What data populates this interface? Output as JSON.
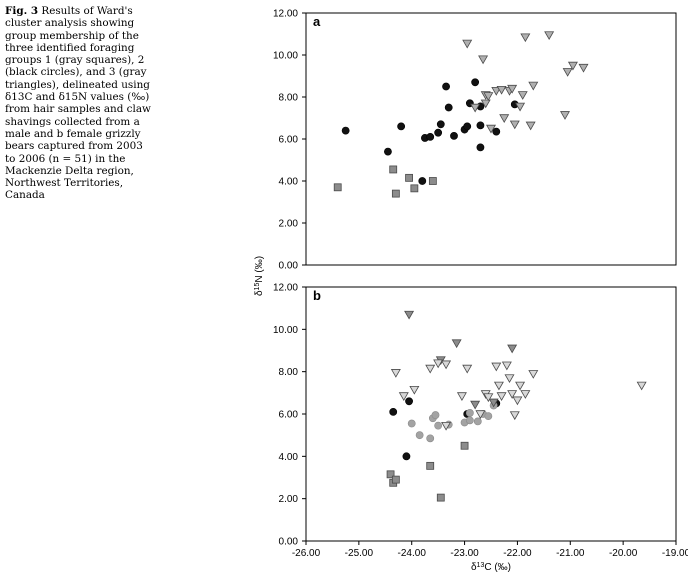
{
  "caption": {
    "label": "Fig. 3",
    "text": "Results of Ward's cluster analysis showing group membership of the three identified foraging groups 1 (gray squares), 2 (black circles), and 3 (gray triangles), delineated using δ13C and δ15N values (‰) from hair samples and claw shavings collected from a male and b female grizzly bears captured from 2003 to 2006 (n = 51) in the Mackenzie Delta region, Northwest Territories, Canada"
  },
  "colors": {
    "group1_square": "#8c8c8c",
    "group2_circle": "#111111",
    "group3_triangle": "#b0b0b0",
    "group2_circle_light": "#a3a3a3",
    "group3_triangle_light": "#d8d8d8",
    "marker_stroke": "#4a4a4a"
  },
  "chart_data": [
    {
      "type": "scatter",
      "panel": "a",
      "ylabel": "δ15N (‰)",
      "xlim": [
        -26.0,
        -19.0
      ],
      "ylim": [
        0.0,
        12.0
      ],
      "yticks": [
        "0.00",
        "2.00",
        "4.00",
        "6.00",
        "8.00",
        "10.00",
        "12.00"
      ],
      "series": [
        {
          "name": "Group 1 (gray squares)",
          "marker": "square",
          "color": "#8c8c8c",
          "points": [
            [
              -25.4,
              3.7
            ],
            [
              -24.35,
              4.55
            ],
            [
              -24.3,
              3.4
            ],
            [
              -24.05,
              4.15
            ],
            [
              -23.95,
              3.65
            ],
            [
              -23.6,
              4.0
            ]
          ]
        },
        {
          "name": "Group 2 (black circles)",
          "marker": "circle",
          "color": "#111111",
          "points": [
            [
              -25.25,
              6.4
            ],
            [
              -24.45,
              5.4
            ],
            [
              -24.2,
              6.6
            ],
            [
              -23.8,
              4.0
            ],
            [
              -23.75,
              6.05
            ],
            [
              -23.65,
              6.1
            ],
            [
              -23.5,
              6.3
            ],
            [
              -23.45,
              6.7
            ],
            [
              -23.3,
              7.5
            ],
            [
              -23.35,
              8.5
            ],
            [
              -23.2,
              6.15
            ],
            [
              -23.0,
              6.45
            ],
            [
              -22.95,
              6.6
            ],
            [
              -22.9,
              7.7
            ],
            [
              -22.8,
              8.7
            ],
            [
              -22.7,
              7.55
            ],
            [
              -22.7,
              6.65
            ],
            [
              -22.7,
              5.6
            ],
            [
              -22.4,
              6.35
            ],
            [
              -22.05,
              7.65
            ]
          ]
        },
        {
          "name": "Group 3 (gray triangles)",
          "marker": "triangle",
          "color": "#b0b0b0",
          "points": [
            [
              -22.95,
              10.55
            ],
            [
              -22.65,
              9.8
            ],
            [
              -22.8,
              7.5
            ],
            [
              -22.6,
              7.7
            ],
            [
              -22.6,
              8.1
            ],
            [
              -22.5,
              6.5
            ],
            [
              -22.55,
              8.05
            ],
            [
              -22.4,
              8.3
            ],
            [
              -22.3,
              8.35
            ],
            [
              -22.25,
              7.0
            ],
            [
              -22.15,
              8.3
            ],
            [
              -22.1,
              8.4
            ],
            [
              -22.05,
              6.7
            ],
            [
              -21.95,
              7.55
            ],
            [
              -21.9,
              8.1
            ],
            [
              -21.85,
              10.85
            ],
            [
              -21.75,
              6.65
            ],
            [
              -21.7,
              8.55
            ],
            [
              -21.4,
              10.95
            ],
            [
              -21.1,
              7.15
            ],
            [
              -21.05,
              9.2
            ],
            [
              -20.95,
              9.5
            ],
            [
              -20.75,
              9.4
            ]
          ]
        }
      ]
    },
    {
      "type": "scatter",
      "panel": "b",
      "xlabel": "δ13C (‰)",
      "ylabel": "δ15N (‰)",
      "xlim": [
        -26.0,
        -19.0
      ],
      "ylim": [
        0.0,
        12.0
      ],
      "xticks": [
        "-26.00",
        "-25.00",
        "-24.00",
        "-23.00",
        "-22.00",
        "-21.00",
        "-20.00",
        "-19.00"
      ],
      "yticks": [
        "0.00",
        "2.00",
        "4.00",
        "6.00",
        "8.00",
        "10.00",
        "12.00"
      ],
      "series": [
        {
          "name": "Group 1 (gray squares)",
          "marker": "square",
          "color": "#8c8c8c",
          "points": [
            [
              -24.4,
              3.15
            ],
            [
              -24.35,
              2.75
            ],
            [
              -24.3,
              2.9
            ],
            [
              -23.65,
              3.55
            ],
            [
              -23.45,
              2.05
            ],
            [
              -23.0,
              4.5
            ]
          ]
        },
        {
          "name": "Group 2 (black circles)",
          "marker": "circle",
          "color": "#111111",
          "points": [
            [
              -24.35,
              6.1
            ],
            [
              -24.05,
              6.6
            ],
            [
              -24.1,
              4.0
            ],
            [
              -22.95,
              6.0
            ],
            [
              -22.4,
              6.5
            ]
          ]
        },
        {
          "name": "Group 2 (gray circles)",
          "marker": "circle",
          "color": "#a3a3a3",
          "points": [
            [
              -24.0,
              5.55
            ],
            [
              -23.85,
              5.0
            ],
            [
              -23.65,
              4.85
            ],
            [
              -23.6,
              5.8
            ],
            [
              -23.55,
              5.95
            ],
            [
              -23.5,
              5.45
            ],
            [
              -23.3,
              5.5
            ],
            [
              -23.0,
              5.6
            ],
            [
              -22.9,
              5.7
            ],
            [
              -22.9,
              6.05
            ],
            [
              -22.75,
              5.65
            ],
            [
              -22.65,
              6.0
            ],
            [
              -22.55,
              5.9
            ],
            [
              -22.45,
              6.4
            ]
          ]
        },
        {
          "name": "Group 3 (dark triangles)",
          "marker": "triangle",
          "color": "#8c8c8c",
          "points": [
            [
              -24.05,
              10.7
            ],
            [
              -23.45,
              8.55
            ],
            [
              -23.15,
              9.35
            ],
            [
              -22.8,
              6.45
            ],
            [
              -22.45,
              6.55
            ],
            [
              -22.1,
              9.1
            ]
          ]
        },
        {
          "name": "Group 3 (light triangles)",
          "marker": "triangle",
          "color": "#d8d8d8",
          "points": [
            [
              -24.3,
              7.95
            ],
            [
              -24.15,
              6.85
            ],
            [
              -23.95,
              7.15
            ],
            [
              -23.65,
              8.15
            ],
            [
              -23.5,
              8.4
            ],
            [
              -23.35,
              8.35
            ],
            [
              -23.35,
              5.45
            ],
            [
              -23.05,
              6.85
            ],
            [
              -22.95,
              8.15
            ],
            [
              -22.7,
              6.0
            ],
            [
              -22.6,
              6.95
            ],
            [
              -22.55,
              6.8
            ],
            [
              -22.4,
              8.25
            ],
            [
              -22.35,
              7.35
            ],
            [
              -22.3,
              6.85
            ],
            [
              -22.2,
              8.3
            ],
            [
              -22.15,
              7.7
            ],
            [
              -22.1,
              6.95
            ],
            [
              -22.05,
              5.95
            ],
            [
              -22.0,
              6.65
            ],
            [
              -21.95,
              7.35
            ],
            [
              -21.85,
              6.95
            ],
            [
              -21.7,
              7.9
            ],
            [
              -19.65,
              7.35
            ]
          ]
        }
      ]
    }
  ]
}
